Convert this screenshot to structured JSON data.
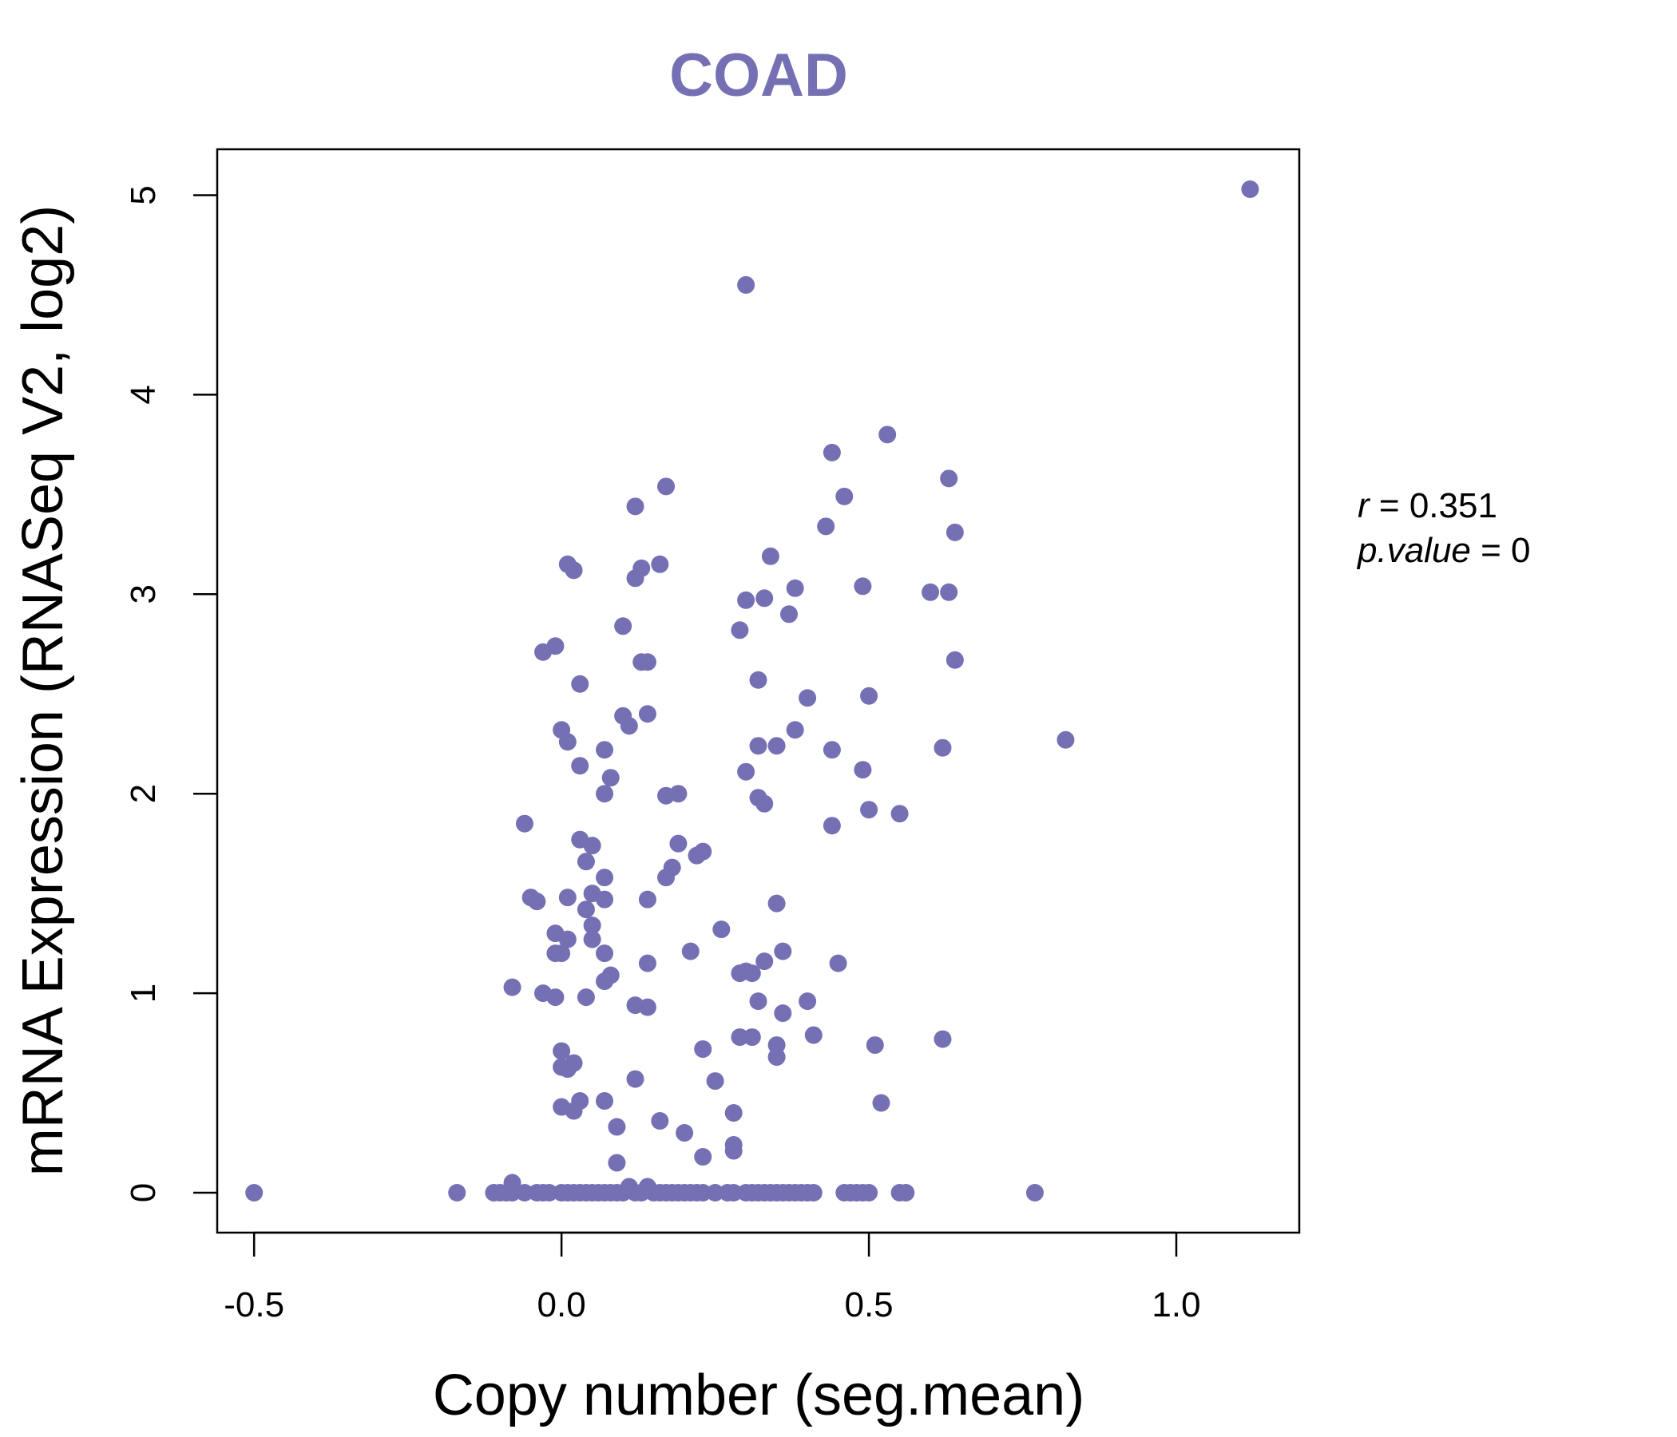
{
  "chart_data": {
    "type": "scatter",
    "title": "COAD",
    "xlabel": "Copy number (seg.mean)",
    "ylabel": "mRNA Expression (RNASeq V2, log2)",
    "xlim": [
      -0.56,
      1.2
    ],
    "ylim": [
      -0.2,
      5.23
    ],
    "xticks": [
      -0.5,
      0.0,
      0.5,
      1.0
    ],
    "xtick_labels": [
      "-0.5",
      "0.0",
      "0.5",
      "1.0"
    ],
    "yticks": [
      0,
      1,
      2,
      3,
      4,
      5
    ],
    "ytick_labels": [
      "0",
      "1",
      "2",
      "3",
      "4",
      "5"
    ],
    "grid": false,
    "point_color": "#7570b3",
    "annotation": {
      "r_label": "r",
      "r_value": "0.351",
      "p_label": "p.value",
      "p_value": "0"
    },
    "points": [
      [
        -0.5,
        0.0
      ],
      [
        -0.17,
        0.0
      ],
      [
        -0.11,
        0.0
      ],
      [
        -0.1,
        0.0
      ],
      [
        -0.09,
        0.0
      ],
      [
        -0.08,
        0.05
      ],
      [
        -0.08,
        0.0
      ],
      [
        -0.06,
        0.0
      ],
      [
        -0.04,
        0.0
      ],
      [
        -0.03,
        0.0
      ],
      [
        -0.02,
        0.0
      ],
      [
        0.0,
        0.0
      ],
      [
        0.01,
        0.0
      ],
      [
        0.02,
        0.0
      ],
      [
        0.03,
        0.0
      ],
      [
        0.04,
        0.0
      ],
      [
        0.05,
        0.0
      ],
      [
        0.06,
        0.0
      ],
      [
        0.07,
        0.0
      ],
      [
        0.08,
        0.0
      ],
      [
        0.09,
        0.0
      ],
      [
        0.1,
        0.0
      ],
      [
        0.11,
        0.03
      ],
      [
        0.12,
        0.0
      ],
      [
        0.13,
        0.0
      ],
      [
        0.14,
        0.03
      ],
      [
        0.15,
        0.0
      ],
      [
        0.16,
        0.0
      ],
      [
        0.17,
        0.0
      ],
      [
        0.18,
        0.0
      ],
      [
        0.19,
        0.0
      ],
      [
        0.2,
        0.0
      ],
      [
        0.21,
        0.0
      ],
      [
        0.22,
        0.0
      ],
      [
        0.23,
        0.0
      ],
      [
        0.25,
        0.0
      ],
      [
        0.27,
        0.0
      ],
      [
        0.28,
        0.0
      ],
      [
        0.3,
        0.0
      ],
      [
        0.31,
        0.0
      ],
      [
        0.32,
        0.0
      ],
      [
        0.33,
        0.0
      ],
      [
        0.34,
        0.0
      ],
      [
        0.35,
        0.0
      ],
      [
        0.36,
        0.0
      ],
      [
        0.37,
        0.0
      ],
      [
        0.38,
        0.0
      ],
      [
        0.39,
        0.0
      ],
      [
        0.4,
        0.0
      ],
      [
        0.41,
        0.0
      ],
      [
        0.46,
        0.0
      ],
      [
        0.47,
        0.0
      ],
      [
        0.48,
        0.0
      ],
      [
        0.49,
        0.0
      ],
      [
        0.5,
        0.0
      ],
      [
        0.55,
        0.0
      ],
      [
        0.56,
        0.0
      ],
      [
        0.77,
        0.0
      ],
      [
        0.3,
        4.55
      ],
      [
        1.12,
        5.03
      ],
      [
        0.44,
        3.71
      ],
      [
        0.53,
        3.8
      ],
      [
        0.63,
        3.58
      ],
      [
        0.46,
        3.49
      ],
      [
        0.43,
        3.34
      ],
      [
        0.64,
        3.31
      ],
      [
        0.17,
        3.54
      ],
      [
        0.12,
        3.44
      ],
      [
        0.34,
        3.19
      ],
      [
        0.13,
        3.13
      ],
      [
        0.16,
        3.15
      ],
      [
        0.12,
        3.08
      ],
      [
        0.01,
        3.15
      ],
      [
        0.02,
        3.12
      ],
      [
        0.3,
        2.97
      ],
      [
        0.33,
        2.98
      ],
      [
        0.38,
        3.03
      ],
      [
        0.49,
        3.04
      ],
      [
        0.6,
        3.01
      ],
      [
        0.63,
        3.01
      ],
      [
        0.37,
        2.9
      ],
      [
        0.1,
        2.84
      ],
      [
        0.29,
        2.82
      ],
      [
        -0.01,
        2.74
      ],
      [
        -0.03,
        2.71
      ],
      [
        0.13,
        2.66
      ],
      [
        0.14,
        2.66
      ],
      [
        0.64,
        2.67
      ],
      [
        0.03,
        2.55
      ],
      [
        0.32,
        2.57
      ],
      [
        0.4,
        2.48
      ],
      [
        0.5,
        2.49
      ],
      [
        0.14,
        2.4
      ],
      [
        0.1,
        2.39
      ],
      [
        0.11,
        2.34
      ],
      [
        0.0,
        2.32
      ],
      [
        0.38,
        2.32
      ],
      [
        0.01,
        2.26
      ],
      [
        0.82,
        2.27
      ],
      [
        0.32,
        2.24
      ],
      [
        0.35,
        2.24
      ],
      [
        0.07,
        2.22
      ],
      [
        0.44,
        2.22
      ],
      [
        0.62,
        2.23
      ],
      [
        0.03,
        2.14
      ],
      [
        0.3,
        2.11
      ],
      [
        0.49,
        2.12
      ],
      [
        0.08,
        2.08
      ],
      [
        0.07,
        2.0
      ],
      [
        0.17,
        1.99
      ],
      [
        0.19,
        2.0
      ],
      [
        0.32,
        1.98
      ],
      [
        0.33,
        1.95
      ],
      [
        0.5,
        1.92
      ],
      [
        0.55,
        1.9
      ],
      [
        -0.06,
        1.85
      ],
      [
        0.44,
        1.84
      ],
      [
        0.03,
        1.77
      ],
      [
        0.05,
        1.74
      ],
      [
        0.19,
        1.75
      ],
      [
        0.22,
        1.69
      ],
      [
        0.23,
        1.71
      ],
      [
        0.04,
        1.66
      ],
      [
        0.18,
        1.63
      ],
      [
        0.07,
        1.58
      ],
      [
        0.17,
        1.58
      ],
      [
        0.05,
        1.5
      ],
      [
        -0.05,
        1.48
      ],
      [
        -0.04,
        1.46
      ],
      [
        0.01,
        1.48
      ],
      [
        0.07,
        1.47
      ],
      [
        0.14,
        1.47
      ],
      [
        0.35,
        1.45
      ],
      [
        0.04,
        1.42
      ],
      [
        0.05,
        1.34
      ],
      [
        -0.01,
        1.3
      ],
      [
        0.26,
        1.32
      ],
      [
        0.01,
        1.27
      ],
      [
        0.05,
        1.27
      ],
      [
        -0.01,
        1.2
      ],
      [
        0.0,
        1.2
      ],
      [
        0.07,
        1.2
      ],
      [
        0.21,
        1.21
      ],
      [
        0.36,
        1.21
      ],
      [
        0.14,
        1.15
      ],
      [
        0.33,
        1.16
      ],
      [
        0.45,
        1.15
      ],
      [
        0.29,
        1.1
      ],
      [
        0.3,
        1.11
      ],
      [
        0.31,
        1.1
      ],
      [
        0.07,
        1.06
      ],
      [
        0.08,
        1.09
      ],
      [
        -0.08,
        1.03
      ],
      [
        -0.03,
        1.0
      ],
      [
        -0.01,
        0.98
      ],
      [
        0.04,
        0.98
      ],
      [
        0.12,
        0.94
      ],
      [
        0.14,
        0.93
      ],
      [
        0.32,
        0.96
      ],
      [
        0.36,
        0.9
      ],
      [
        0.4,
        0.96
      ],
      [
        0.29,
        0.78
      ],
      [
        0.31,
        0.78
      ],
      [
        0.35,
        0.74
      ],
      [
        0.41,
        0.79
      ],
      [
        0.51,
        0.74
      ],
      [
        0.62,
        0.77
      ],
      [
        0.0,
        0.71
      ],
      [
        0.23,
        0.72
      ],
      [
        0.35,
        0.68
      ],
      [
        0.0,
        0.63
      ],
      [
        0.01,
        0.62
      ],
      [
        0.02,
        0.65
      ],
      [
        0.12,
        0.57
      ],
      [
        0.25,
        0.56
      ],
      [
        0.0,
        0.43
      ],
      [
        0.02,
        0.41
      ],
      [
        0.03,
        0.46
      ],
      [
        0.07,
        0.46
      ],
      [
        0.52,
        0.45
      ],
      [
        0.28,
        0.4
      ],
      [
        0.09,
        0.33
      ],
      [
        0.16,
        0.36
      ],
      [
        0.2,
        0.3
      ],
      [
        0.28,
        0.24
      ],
      [
        0.28,
        0.21
      ],
      [
        0.23,
        0.18
      ],
      [
        0.09,
        0.15
      ]
    ]
  }
}
